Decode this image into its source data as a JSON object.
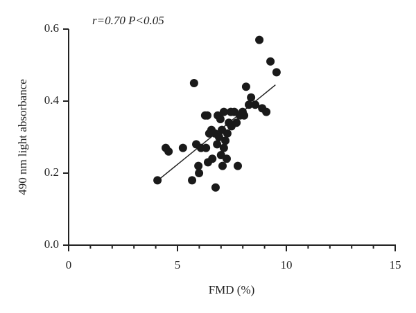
{
  "chart_data": {
    "type": "scatter",
    "annotation": "r=0.70 P<0.05",
    "x_label": "FMD (%)",
    "y_label": "490 nm light absorbance",
    "color": "#1a1a1a",
    "xlim": [
      0,
      15
    ],
    "xticks": [
      0,
      5,
      10,
      15
    ],
    "xminorticks": [
      1,
      2,
      3,
      4,
      6,
      7,
      8,
      9,
      11,
      12,
      13,
      14
    ],
    "ylim": [
      0,
      0.6
    ],
    "yticks": [
      {
        "value": 0,
        "label": "0.0"
      },
      0.2,
      0.4,
      0.6
    ],
    "x": [
      4.08,
      4.46,
      4.59,
      5.25,
      5.67,
      5.76,
      5.86,
      5.96,
      5.99,
      6.08,
      6.27,
      6.37,
      6.31,
      6.4,
      6.46,
      6.56,
      6.6,
      6.72,
      6.75,
      6.82,
      6.85,
      6.91,
      6.97,
      7.0,
      7.04,
      7.07,
      7.13,
      7.13,
      7.2,
      7.26,
      7.29,
      7.36,
      7.45,
      7.48,
      7.61,
      7.71,
      7.77,
      7.87,
      7.99,
      8.06,
      8.15,
      8.28,
      8.38,
      8.57,
      8.76,
      8.89,
      9.08,
      9.27,
      9.55
    ],
    "values": [
      0.18,
      0.27,
      0.26,
      0.27,
      0.18,
      0.45,
      0.28,
      0.22,
      0.2,
      0.27,
      0.36,
      0.36,
      0.27,
      0.23,
      0.31,
      0.32,
      0.24,
      0.31,
      0.16,
      0.28,
      0.36,
      0.3,
      0.35,
      0.25,
      0.32,
      0.22,
      0.27,
      0.37,
      0.29,
      0.24,
      0.31,
      0.34,
      0.37,
      0.33,
      0.37,
      0.34,
      0.22,
      0.36,
      0.37,
      0.36,
      0.44,
      0.39,
      0.41,
      0.39,
      0.57,
      0.38,
      0.37,
      0.51,
      0.48
    ],
    "trendline": {
      "x": [
        4.1,
        9.5
      ],
      "y": [
        0.18,
        0.445
      ]
    }
  }
}
